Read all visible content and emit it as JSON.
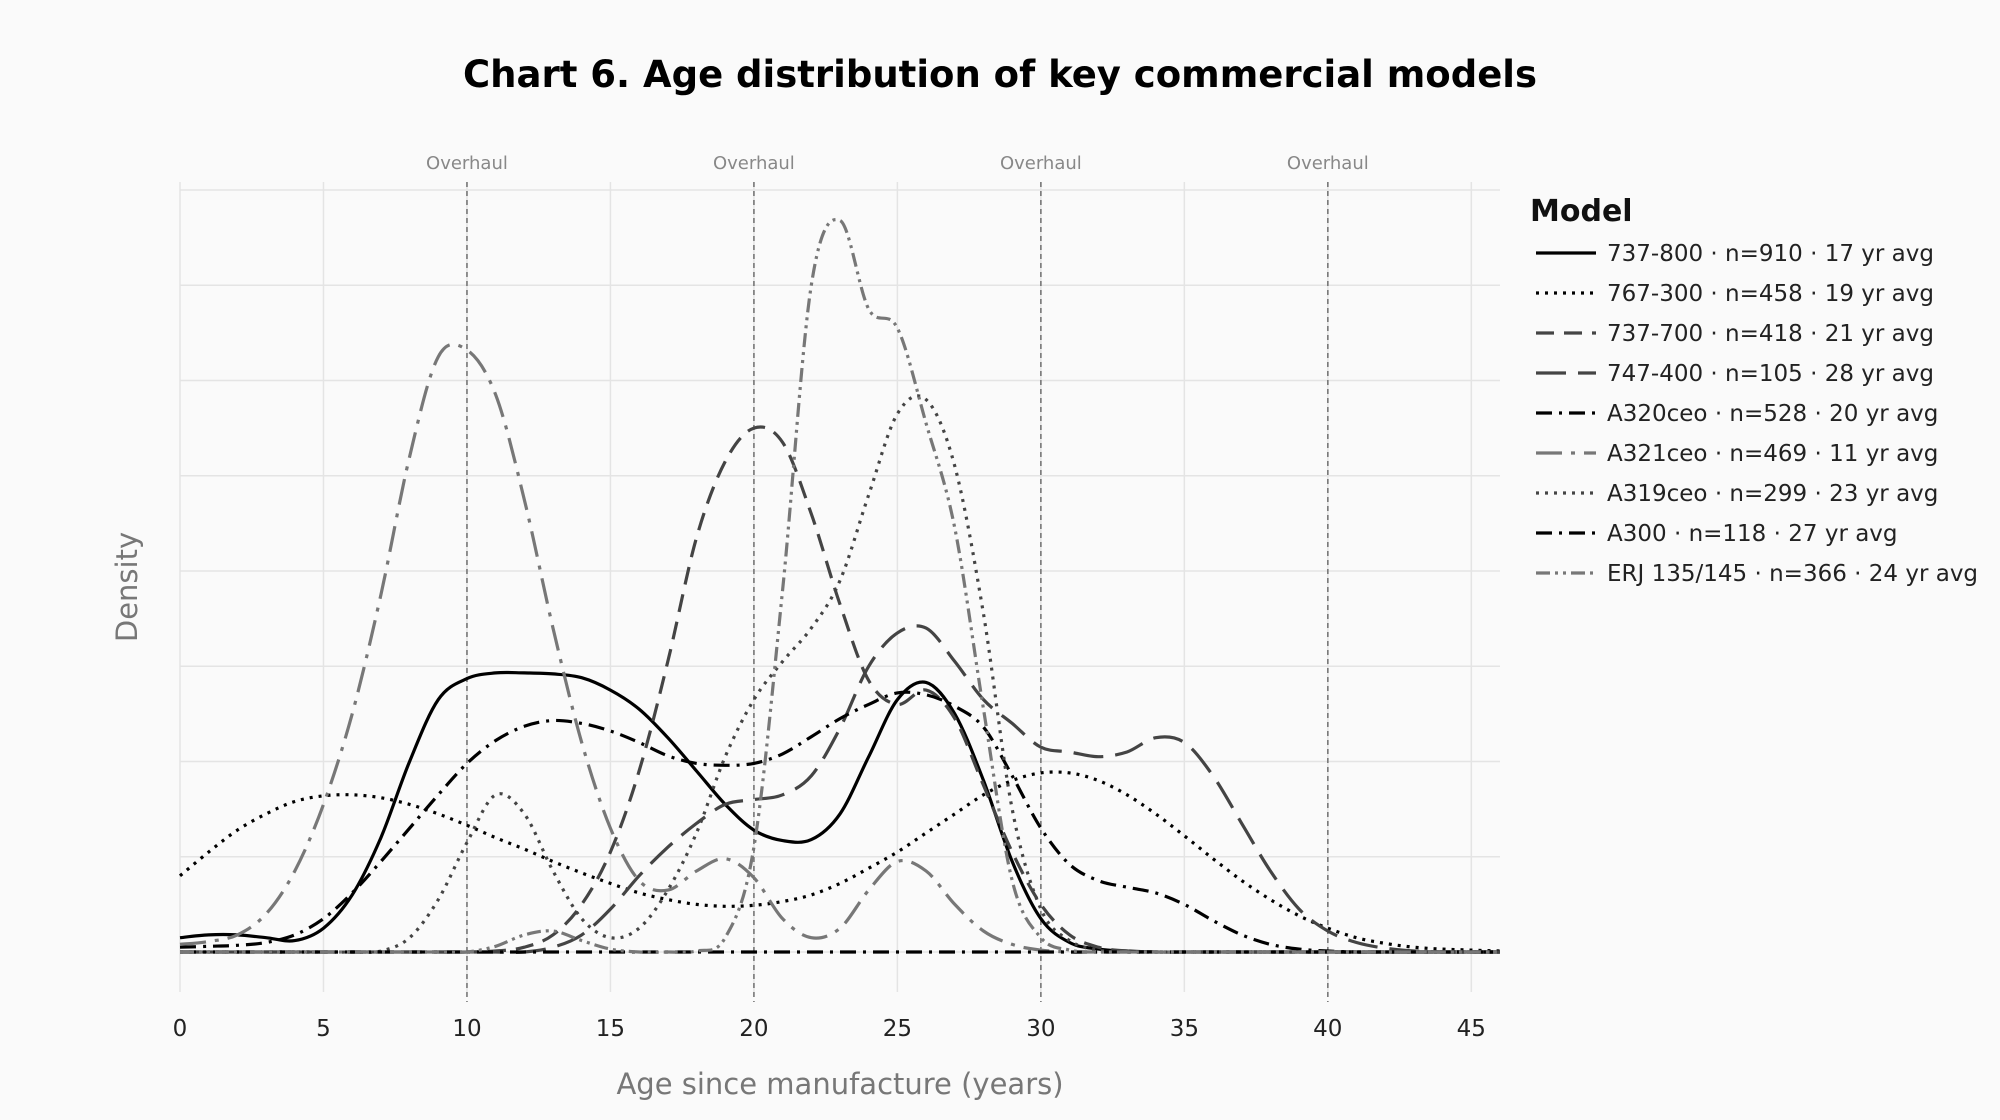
{
  "chart_data": {
    "type": "line",
    "title": "Chart 6. Age distribution of key commercial models",
    "xlabel": "Age since manufacture (years)",
    "ylabel": "Density",
    "xlim": [
      0,
      46
    ],
    "xticks": [
      0,
      5,
      10,
      15,
      20,
      25,
      30,
      35,
      40,
      45
    ],
    "ylim": [
      0,
      0.08
    ],
    "y_tick_labels_shown": false,
    "grid": true,
    "legend": {
      "title": "Model",
      "position": "right"
    },
    "annotations": [
      {
        "x": 10,
        "label": "Overhaul"
      },
      {
        "x": 20,
        "label": "Overhaul"
      },
      {
        "x": 30,
        "label": "Overhaul"
      },
      {
        "x": 40,
        "label": "Overhaul"
      }
    ],
    "x": [
      0,
      1,
      2,
      3,
      4,
      5,
      6,
      7,
      8,
      9,
      10,
      11,
      12,
      13,
      14,
      15,
      16,
      17,
      18,
      19,
      20,
      21,
      22,
      23,
      24,
      25,
      26,
      27,
      28,
      29,
      30,
      31,
      32,
      33,
      34,
      35,
      36,
      37,
      38,
      39,
      40,
      41,
      42,
      43,
      44,
      45,
      46
    ],
    "series": [
      {
        "name": "737-800 · n=910 · 17 yr avg",
        "color": "#000000",
        "dash": "solid",
        "values": [
          0.0015,
          0.0018,
          0.0018,
          0.0015,
          0.0012,
          0.0025,
          0.006,
          0.012,
          0.02,
          0.0265,
          0.0287,
          0.0293,
          0.0293,
          0.0292,
          0.0288,
          0.0275,
          0.0255,
          0.0225,
          0.019,
          0.0155,
          0.0128,
          0.0117,
          0.0118,
          0.0145,
          0.0205,
          0.0265,
          0.0283,
          0.025,
          0.018,
          0.0095,
          0.0035,
          0.001,
          0.0003,
          0.0001,
          0,
          0,
          0,
          0,
          0,
          0,
          0,
          0,
          0,
          0,
          0,
          0,
          0
        ]
      },
      {
        "name": "767-300 · n=458 · 19 yr avg",
        "color": "#000000",
        "dash": "dot",
        "values": [
          0.008,
          0.0105,
          0.0128,
          0.0145,
          0.0158,
          0.0164,
          0.0165,
          0.0162,
          0.0155,
          0.0145,
          0.0133,
          0.012,
          0.0108,
          0.0095,
          0.0083,
          0.0072,
          0.0062,
          0.0055,
          0.005,
          0.0048,
          0.0049,
          0.0053,
          0.006,
          0.0072,
          0.0088,
          0.0105,
          0.0125,
          0.0145,
          0.0165,
          0.018,
          0.0188,
          0.0188,
          0.018,
          0.0165,
          0.0145,
          0.0122,
          0.0098,
          0.0075,
          0.0055,
          0.0038,
          0.0025,
          0.0015,
          0.0009,
          0.0005,
          0.0003,
          0.0002,
          0.0001
        ]
      },
      {
        "name": "737-700 · n=418 · 21 yr avg",
        "color": "#444444",
        "dash": "dash",
        "values": [
          0,
          0,
          0,
          0,
          0,
          0,
          0,
          0,
          0,
          0,
          0,
          0.0001,
          0.0005,
          0.0018,
          0.005,
          0.0105,
          0.019,
          0.0305,
          0.0435,
          0.0515,
          0.055,
          0.0535,
          0.046,
          0.0365,
          0.0285,
          0.026,
          0.0275,
          0.0245,
          0.0175,
          0.0105,
          0.005,
          0.0018,
          0.0005,
          0.0001,
          0,
          0,
          0,
          0,
          0,
          0,
          0,
          0,
          0,
          0,
          0,
          0,
          0
        ]
      },
      {
        "name": "747-400 · n=105 · 28 yr avg",
        "color": "#444444",
        "dash": "longdash",
        "values": [
          0,
          0,
          0,
          0,
          0,
          0,
          0,
          0,
          0,
          0,
          0,
          0,
          0,
          0.0005,
          0.0018,
          0.0045,
          0.008,
          0.011,
          0.0135,
          0.0155,
          0.016,
          0.0165,
          0.0185,
          0.0235,
          0.03,
          0.0335,
          0.034,
          0.0305,
          0.0265,
          0.024,
          0.0215,
          0.021,
          0.0205,
          0.021,
          0.0225,
          0.022,
          0.0185,
          0.0135,
          0.0085,
          0.0045,
          0.0022,
          0.001,
          0.0004,
          0.0001,
          0,
          0,
          0
        ]
      },
      {
        "name": "A320ceo · n=528 · 20 yr avg",
        "color": "#000000",
        "dash": "dashdot",
        "values": [
          0.0005,
          0.0006,
          0.0007,
          0.001,
          0.0018,
          0.0035,
          0.0062,
          0.0095,
          0.013,
          0.0165,
          0.0198,
          0.0222,
          0.0237,
          0.0243,
          0.024,
          0.0232,
          0.022,
          0.0206,
          0.0198,
          0.0196,
          0.0198,
          0.0208,
          0.0226,
          0.0245,
          0.026,
          0.0272,
          0.027,
          0.0258,
          0.0236,
          0.0185,
          0.013,
          0.0092,
          0.0075,
          0.0068,
          0.0062,
          0.005,
          0.0033,
          0.0018,
          0.0008,
          0.0003,
          0.0001,
          0,
          0,
          0,
          0,
          0,
          0
        ]
      },
      {
        "name": "A321ceo · n=469 · 11 yr avg",
        "color": "#777777",
        "dash": "longdashdot",
        "values": [
          0.0008,
          0.0011,
          0.0018,
          0.004,
          0.0085,
          0.0155,
          0.025,
          0.0375,
          0.052,
          0.0625,
          0.0632,
          0.0585,
          0.0475,
          0.034,
          0.022,
          0.013,
          0.0075,
          0.0065,
          0.0085,
          0.0098,
          0.0078,
          0.0035,
          0.0015,
          0.0025,
          0.0065,
          0.0095,
          0.0085,
          0.005,
          0.0022,
          0.0008,
          0.0002,
          0,
          0,
          0,
          0,
          0,
          0,
          0,
          0,
          0,
          0,
          0,
          0,
          0,
          0,
          0,
          0
        ]
      },
      {
        "name": "A319ceo · n=299 · 23 yr avg",
        "color": "#444444",
        "dash": "dot",
        "values": [
          0,
          0,
          0,
          0,
          0,
          0,
          0,
          0.0001,
          0.0015,
          0.0055,
          0.0115,
          0.0165,
          0.0145,
          0.0085,
          0.0035,
          0.0015,
          0.0025,
          0.0065,
          0.0125,
          0.0205,
          0.0265,
          0.0305,
          0.034,
          0.039,
          0.048,
          0.0565,
          0.058,
          0.051,
          0.0355,
          0.015,
          0.0045,
          0.0012,
          0.0002,
          0,
          0,
          0,
          0,
          0,
          0,
          0,
          0,
          0,
          0,
          0,
          0,
          0,
          0
        ]
      },
      {
        "name": "A300 · n=118 · 27 yr avg",
        "color": "#000000",
        "dash": "dashdot",
        "values": [
          0,
          0,
          0,
          0,
          0,
          0,
          0,
          0,
          0,
          0,
          0,
          0,
          0,
          0,
          0,
          0,
          0,
          0,
          0,
          0,
          0,
          0,
          0,
          0,
          0,
          0,
          0,
          0,
          0,
          0,
          0,
          0,
          0,
          0,
          0,
          0,
          0,
          0,
          0,
          0,
          0,
          0,
          0,
          0,
          0,
          0,
          0
        ]
      },
      {
        "name": "ERJ 135/145 · n=366 · 24 yr avg",
        "color": "#777777",
        "dash": "dashdotdot",
        "values": [
          0,
          0,
          0,
          0,
          0,
          0,
          0,
          0,
          0,
          0,
          0,
          0.0006,
          0.0018,
          0.0022,
          0.0012,
          0.0003,
          0,
          0,
          0.0001,
          0.0015,
          0.011,
          0.038,
          0.07,
          0.0768,
          0.0675,
          0.0655,
          0.0555,
          0.0445,
          0.0255,
          0.0075,
          0.0015,
          0.0002,
          0,
          0,
          0,
          0,
          0,
          0,
          0,
          0,
          0,
          0,
          0,
          0,
          0,
          0,
          0
        ]
      }
    ]
  }
}
